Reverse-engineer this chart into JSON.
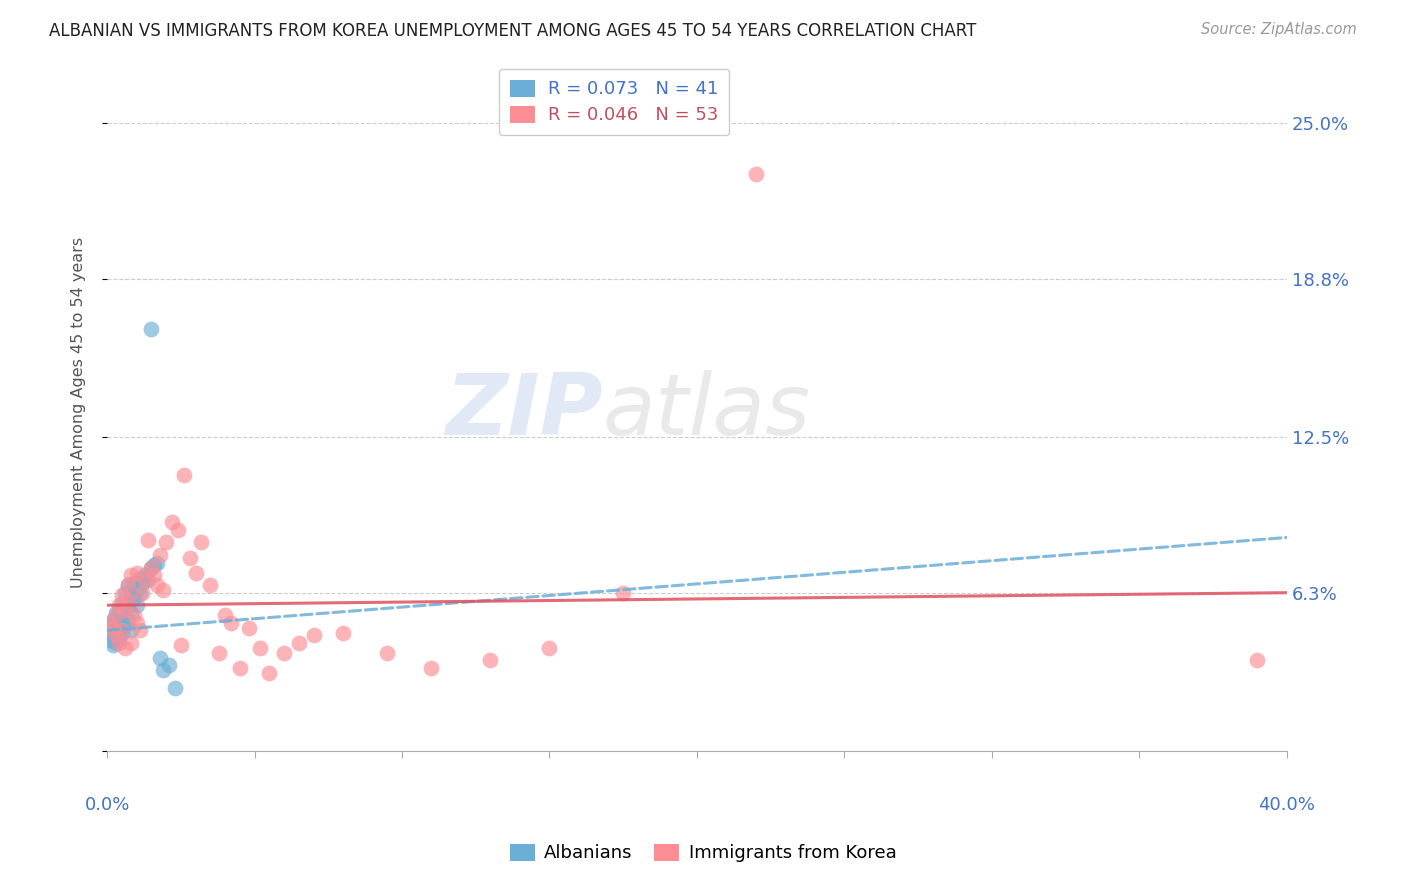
{
  "title": "ALBANIAN VS IMMIGRANTS FROM KOREA UNEMPLOYMENT AMONG AGES 45 TO 54 YEARS CORRELATION CHART",
  "source": "Source: ZipAtlas.com",
  "ylabel": "Unemployment Among Ages 45 to 54 years",
  "y_ticks": [
    0.0,
    0.063,
    0.125,
    0.188,
    0.25
  ],
  "y_tick_labels": [
    "",
    "6.3%",
    "12.5%",
    "18.8%",
    "25.0%"
  ],
  "x_range": [
    0.0,
    0.4
  ],
  "y_range": [
    0.0,
    0.27
  ],
  "albanian_color": "#6baed6",
  "korea_color": "#fc8d94",
  "trend_albanian_color": "#6baed6",
  "trend_korea_color": "#e05060",
  "albanian_x": [
    0.001,
    0.001,
    0.002,
    0.002,
    0.002,
    0.003,
    0.003,
    0.003,
    0.003,
    0.004,
    0.004,
    0.004,
    0.005,
    0.005,
    0.005,
    0.006,
    0.006,
    0.006,
    0.007,
    0.007,
    0.007,
    0.008,
    0.008,
    0.008,
    0.009,
    0.009,
    0.01,
    0.01,
    0.011,
    0.011,
    0.012,
    0.013,
    0.014,
    0.015,
    0.016,
    0.017,
    0.018,
    0.019,
    0.021,
    0.023,
    0.015
  ],
  "albanian_y": [
    0.05,
    0.044,
    0.052,
    0.046,
    0.042,
    0.051,
    0.048,
    0.055,
    0.043,
    0.05,
    0.056,
    0.045,
    0.053,
    0.047,
    0.059,
    0.057,
    0.05,
    0.063,
    0.058,
    0.052,
    0.066,
    0.062,
    0.055,
    0.048,
    0.061,
    0.067,
    0.064,
    0.058,
    0.063,
    0.069,
    0.067,
    0.07,
    0.068,
    0.073,
    0.074,
    0.075,
    0.037,
    0.032,
    0.034,
    0.025,
    0.168
  ],
  "korea_x": [
    0.001,
    0.002,
    0.003,
    0.003,
    0.004,
    0.004,
    0.005,
    0.005,
    0.006,
    0.006,
    0.007,
    0.007,
    0.008,
    0.008,
    0.009,
    0.01,
    0.01,
    0.011,
    0.012,
    0.013,
    0.014,
    0.015,
    0.016,
    0.017,
    0.018,
    0.019,
    0.02,
    0.022,
    0.024,
    0.025,
    0.026,
    0.028,
    0.03,
    0.032,
    0.035,
    0.038,
    0.04,
    0.042,
    0.045,
    0.048,
    0.052,
    0.055,
    0.06,
    0.065,
    0.07,
    0.08,
    0.095,
    0.11,
    0.13,
    0.15,
    0.175,
    0.39,
    0.22
  ],
  "korea_y": [
    0.051,
    0.049,
    0.054,
    0.046,
    0.058,
    0.043,
    0.062,
    0.048,
    0.056,
    0.041,
    0.06,
    0.066,
    0.043,
    0.07,
    0.054,
    0.051,
    0.071,
    0.048,
    0.063,
    0.068,
    0.084,
    0.073,
    0.07,
    0.066,
    0.078,
    0.064,
    0.083,
    0.091,
    0.088,
    0.042,
    0.11,
    0.077,
    0.071,
    0.083,
    0.066,
    0.039,
    0.054,
    0.051,
    0.033,
    0.049,
    0.041,
    0.031,
    0.039,
    0.043,
    0.046,
    0.047,
    0.039,
    0.033,
    0.036,
    0.041,
    0.063,
    0.036,
    0.23
  ],
  "albanian_trend_x0": 0.0,
  "albanian_trend_y0": 0.048,
  "albanian_trend_x1": 0.4,
  "albanian_trend_y1": 0.085,
  "korea_trend_x0": 0.0,
  "korea_trend_y0": 0.058,
  "korea_trend_x1": 0.4,
  "korea_trend_y1": 0.063
}
